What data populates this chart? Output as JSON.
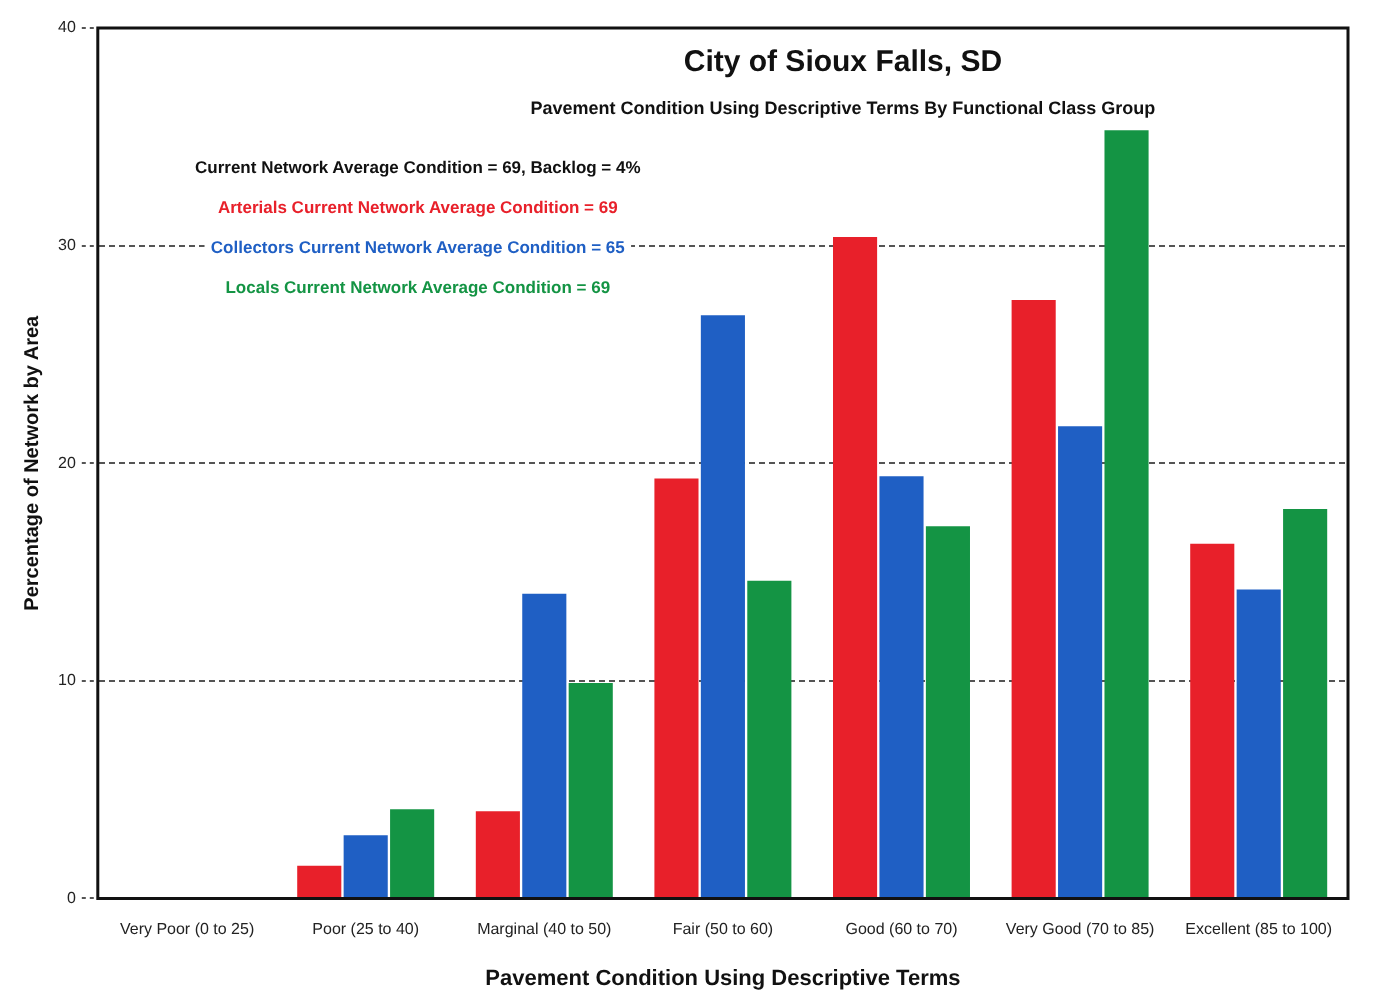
{
  "chart_data": {
    "type": "bar",
    "title": "City of Sioux Falls, SD",
    "subtitle": "Pavement Condition Using Descriptive Terms By Functional Class Group",
    "xlabel": "Pavement Condition Using Descriptive Terms",
    "ylabel": "Percentage of Network by Area",
    "categories": [
      "Very Poor (0 to 25)",
      "Poor (25 to 40)",
      "Marginal (40 to 50)",
      "Fair (50 to 60)",
      "Good (60 to 70)",
      "Very Good (70 to 85)",
      "Excellent (85 to 100)"
    ],
    "series": [
      {
        "color": "#e8202a",
        "values": [
          0,
          1.5,
          4.0,
          19.3,
          30.4,
          27.5,
          16.3
        ]
      },
      {
        "color": "#1f5fc4",
        "values": [
          0,
          2.9,
          14.0,
          26.8,
          19.4,
          21.7,
          14.2
        ]
      },
      {
        "color": "#149444",
        "values": [
          0,
          4.1,
          9.9,
          14.6,
          17.1,
          35.3,
          17.9
        ]
      }
    ],
    "annotations": [
      "Current Network Average Condition = 69, Backlog = 4%",
      "Arterials Current Network Average Condition = 69",
      "Collectors Current Network Average Condition = 65",
      "Locals Current Network Average Condition = 69"
    ],
    "ylim": [
      0,
      40
    ],
    "yticks": [
      0,
      10,
      20,
      30,
      40
    ],
    "grid": "y",
    "legend": false
  }
}
